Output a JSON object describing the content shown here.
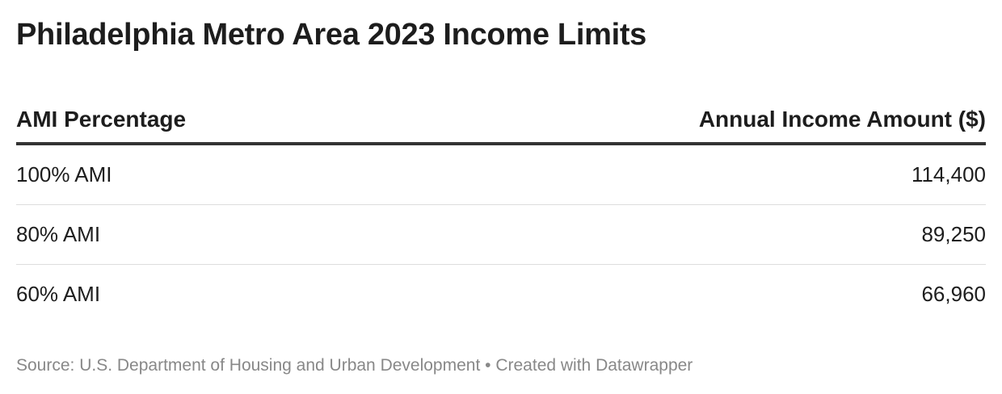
{
  "header": {
    "title": "Philadelphia Metro Area 2023 Income Limits"
  },
  "table": {
    "columns": [
      "AMI Percentage",
      "Annual Income Amount ($)"
    ],
    "rows": [
      [
        "100% AMI",
        "114,400"
      ],
      [
        "80% AMI",
        "89,250"
      ],
      [
        "60% AMI",
        "66,960"
      ]
    ]
  },
  "footer": {
    "source": "Source: U.S. Department of Housing and Urban Development",
    "credit": "Created with Datawrapper"
  }
}
